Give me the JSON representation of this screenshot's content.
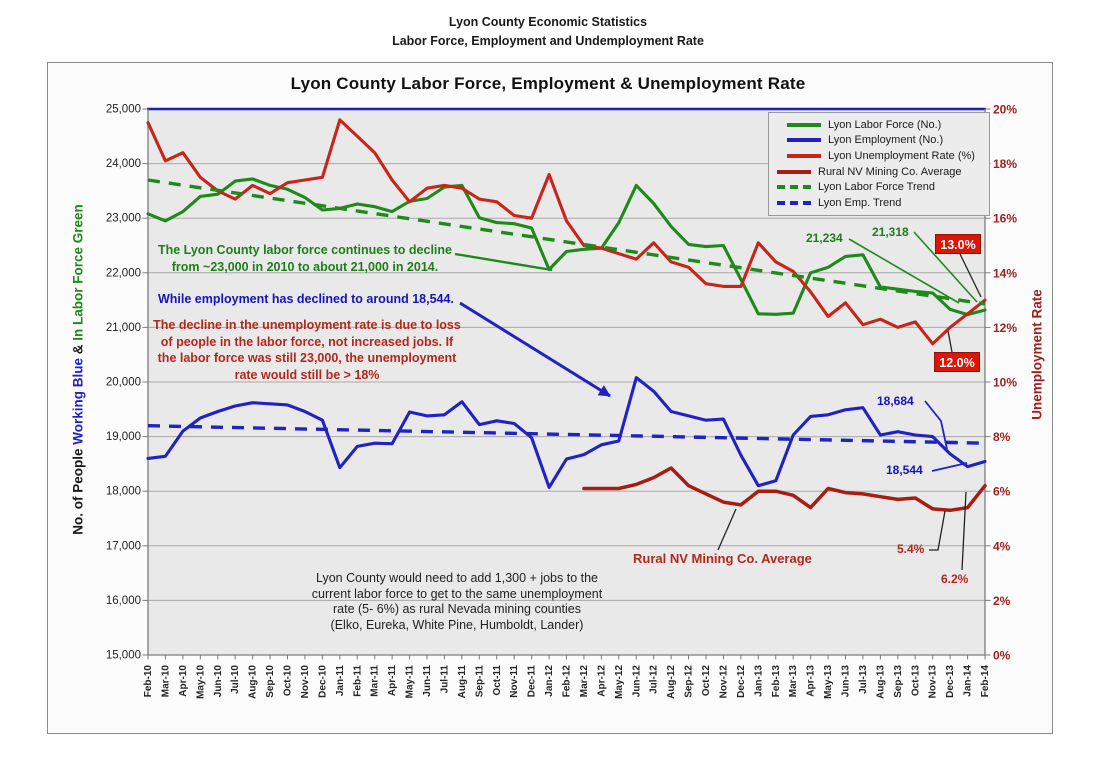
{
  "header": {
    "line1": "Lyon County Economic Statistics",
    "line2": "Labor Force, Employment and Undemployment Rate"
  },
  "chart_data": {
    "type": "line",
    "title": "Lyon County Labor Force, Employment & Unemployment Rate",
    "categories": [
      "Feb-10",
      "Mar-10",
      "Apr-10",
      "May-10",
      "Jun-10",
      "Jul-10",
      "Aug-10",
      "Sep-10",
      "Oct-10",
      "Nov-10",
      "Dec-10",
      "Jan-11",
      "Feb-11",
      "Mar-11",
      "Apr-11",
      "May-11",
      "Jun-11",
      "Jul-11",
      "Aug-11",
      "Sep-11",
      "Oct-11",
      "Nov-11",
      "Dec-11",
      "Jan-12",
      "Feb-12",
      "Mar-12",
      "Apr-12",
      "May-12",
      "Jun-12",
      "Jul-12",
      "Aug-12",
      "Sep-12",
      "Oct-12",
      "Nov-12",
      "Dec-12",
      "Jan-13",
      "Feb-13",
      "Mar-13",
      "Apr-13",
      "May-13",
      "Jun-13",
      "Jul-13",
      "Aug-13",
      "Sep-13",
      "Oct-13",
      "Nov-13",
      "Dec-13",
      "Jan-14",
      "Feb-14"
    ],
    "axes": {
      "left": {
        "min": 15000,
        "max": 25000,
        "ticks": [
          "25,000",
          "24,000",
          "23,000",
          "22,000",
          "21,000",
          "20,000",
          "19,000",
          "18,000",
          "17,000",
          "16,000",
          "15,000"
        ],
        "title_parts": [
          {
            "text": "No. of People ",
            "color": "#1a1a1a"
          },
          {
            "text": "Working Blue",
            "color": "#2222c2"
          },
          {
            "text": " & ",
            "color": "#1a1a1a"
          },
          {
            "text": "In Labor Force Green",
            "color": "#1e8a1a"
          }
        ]
      },
      "right": {
        "min": 0,
        "max": 20,
        "ticks": [
          "20%",
          "18%",
          "16%",
          "14%",
          "12%",
          "10%",
          "8%",
          "6%",
          "4%",
          "2%",
          "0%"
        ],
        "title": "Unemployment Rate"
      }
    },
    "grid": true,
    "legend_position": "top-right",
    "series": [
      {
        "name": "Lyon Labor Force (No.)",
        "axis": "left",
        "color": "#1e8a1a",
        "dashed": false,
        "values": [
          23080,
          22950,
          23120,
          23400,
          23440,
          23680,
          23720,
          23600,
          23530,
          23380,
          23150,
          23180,
          23260,
          23210,
          23120,
          23310,
          23360,
          23570,
          23600,
          23010,
          22920,
          22900,
          22820,
          22060,
          22390,
          22430,
          22450,
          22920,
          23600,
          23270,
          22850,
          22520,
          22480,
          22500,
          21880,
          21250,
          21240,
          21260,
          22000,
          22100,
          22300,
          22330,
          21740,
          21700,
          21660,
          21630,
          21330,
          21234,
          21318
        ]
      },
      {
        "name": "Lyon Employment (No.)",
        "axis": "left",
        "color": "#2222c2",
        "dashed": false,
        "values": [
          18600,
          18640,
          19100,
          19340,
          19460,
          19560,
          19620,
          19600,
          19580,
          19460,
          19300,
          18430,
          18820,
          18880,
          18870,
          19450,
          19380,
          19400,
          19640,
          19220,
          19290,
          19240,
          18980,
          18070,
          18590,
          18670,
          18850,
          18920,
          20080,
          19830,
          19460,
          19380,
          19300,
          19320,
          18660,
          18100,
          18190,
          19030,
          19370,
          19400,
          19490,
          19530,
          19030,
          19090,
          19030,
          19000,
          18684,
          18450,
          18544
        ]
      },
      {
        "name": "Lyon Unemployment Rate (%)",
        "axis": "right",
        "color": "#c8251a",
        "dashed": false,
        "values": [
          19.5,
          18.1,
          18.4,
          17.5,
          17.0,
          16.7,
          17.2,
          16.9,
          17.3,
          17.4,
          17.5,
          19.6,
          19.0,
          18.4,
          17.4,
          16.6,
          17.1,
          17.2,
          17.1,
          16.7,
          16.6,
          16.1,
          16.0,
          17.6,
          15.9,
          15.0,
          14.9,
          14.7,
          14.5,
          15.1,
          14.4,
          14.2,
          13.6,
          13.5,
          13.5,
          15.1,
          14.4,
          14.05,
          13.3,
          12.4,
          12.9,
          12.1,
          12.3,
          12.0,
          12.2,
          11.4,
          12.0,
          12.5,
          13.0
        ]
      },
      {
        "name": "Rural NV Mining Co. Average",
        "axis": "right",
        "color": "#a81d12",
        "dashed": false,
        "start_index": 25,
        "values": [
          6.1,
          6.1,
          6.1,
          6.25,
          6.5,
          6.85,
          6.2,
          5.9,
          5.6,
          5.5,
          6.0,
          6.0,
          5.85,
          5.4,
          6.1,
          5.95,
          5.9,
          5.8,
          5.7,
          5.75,
          5.35,
          5.3,
          5.4,
          6.2
        ]
      },
      {
        "name": "Lyon Labor Force Trend",
        "axis": "left",
        "color": "#1e8a1a",
        "dashed": true,
        "trend": [
          23700,
          21430
        ]
      },
      {
        "name": "Lyon Emp. Trend",
        "axis": "left",
        "color": "#2222c2",
        "dashed": true,
        "trend": [
          19200,
          18880
        ]
      }
    ]
  },
  "annotations": {
    "labor_note_lines": [
      "The Lyon County labor force continues to decline",
      "from ~23,000 in 2010 to about 21,000 in 2014."
    ],
    "employment_note": "While employment has declined to around 18,544.",
    "rate_note_lines": [
      "The decline in the unemployment rate is due to loss",
      "of people in the labor force, not increased jobs.  If",
      "the labor force was still 23,000, the unemployment",
      "rate would still be > 18%"
    ],
    "jobs_note_lines": [
      "Lyon County would need to add 1,300 + jobs to the",
      "current labor force to get to the same unemployment",
      "rate (5- 6%)  as rural Nevada mining counties",
      "(Elko,  Eureka, White Pine, Humboldt, Lander)"
    ],
    "rural_series_label": "Rural NV Mining Co. Average",
    "labor_jan14": "21,234",
    "labor_feb14": "21,318",
    "rate_feb14": "13.0%",
    "rate_dec13": "12.0%",
    "emp_dec13": "18,684",
    "emp_feb14": "18,544",
    "rural_jan14": "5.4%",
    "rural_feb14": "6.2%"
  },
  "colors": {
    "labor_force_green": "#1e8a1a",
    "employment_blue": "#2222c2",
    "unemployment_red": "#c8251a",
    "rural_dark_red": "#a81d12",
    "callout_box_red": "#dd1505",
    "right_axis_red": "#a02020",
    "plot_background": "#e9e9e9",
    "gridline_gray": "#a9a9a9"
  }
}
